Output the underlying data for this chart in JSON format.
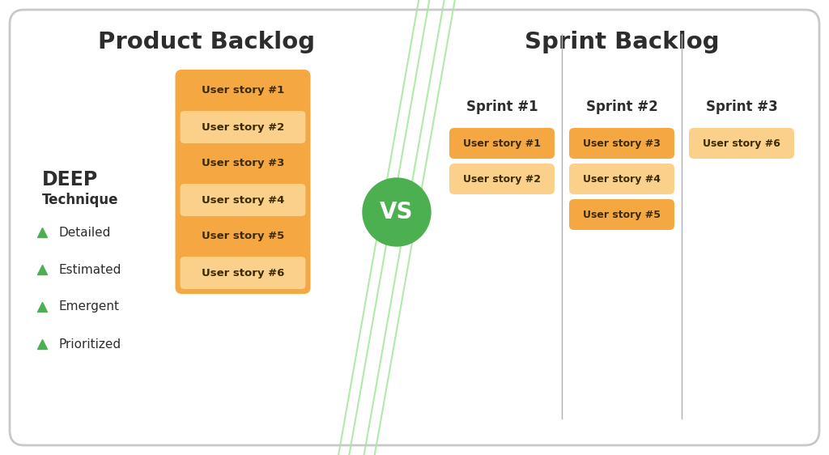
{
  "bg_color": "#ffffff",
  "border_color": "#c8c8c8",
  "title_left": "Product Backlog",
  "title_right": "Sprint Backlog",
  "title_color": "#2d2d2d",
  "deep_title": "DEEP",
  "deep_subtitle": "Technique",
  "deep_items": [
    "Detailed",
    "Estimated",
    "Emergent",
    "Prioritized"
  ],
  "deep_color": "#2d2d2d",
  "green_bullet": "#4caf50",
  "product_stories": [
    "User story #1",
    "User story #2",
    "User story #3",
    "User story #4",
    "User story #5",
    "User story #6"
  ],
  "product_story_colors": [
    "#f5a742",
    "#fad08a",
    "#f5a742",
    "#fad08a",
    "#f5a742",
    "#fad08a"
  ],
  "sprint_headers": [
    "Sprint #1",
    "Sprint #2",
    "Sprint #3"
  ],
  "sprint1_stories": [
    "User story #1",
    "User story #2"
  ],
  "sprint1_colors": [
    "#f5a742",
    "#fad08a"
  ],
  "sprint2_stories": [
    "User story #3",
    "User story #4",
    "User story #5"
  ],
  "sprint2_colors": [
    "#f5a742",
    "#fad08a",
    "#f5a742"
  ],
  "sprint3_stories": [
    "User story #6"
  ],
  "sprint3_colors": [
    "#fad08a"
  ],
  "vs_circle_color": "#4caf50",
  "vs_text_color": "#ffffff",
  "vs_text": "VS",
  "story_text_color": "#3d2b00",
  "header_text_color": "#2d2d2d",
  "divider_color": "#b0b0b0",
  "green_line_color": "#a8e8a0",
  "fig_w": 10.24,
  "fig_h": 5.62,
  "dpi": 100
}
